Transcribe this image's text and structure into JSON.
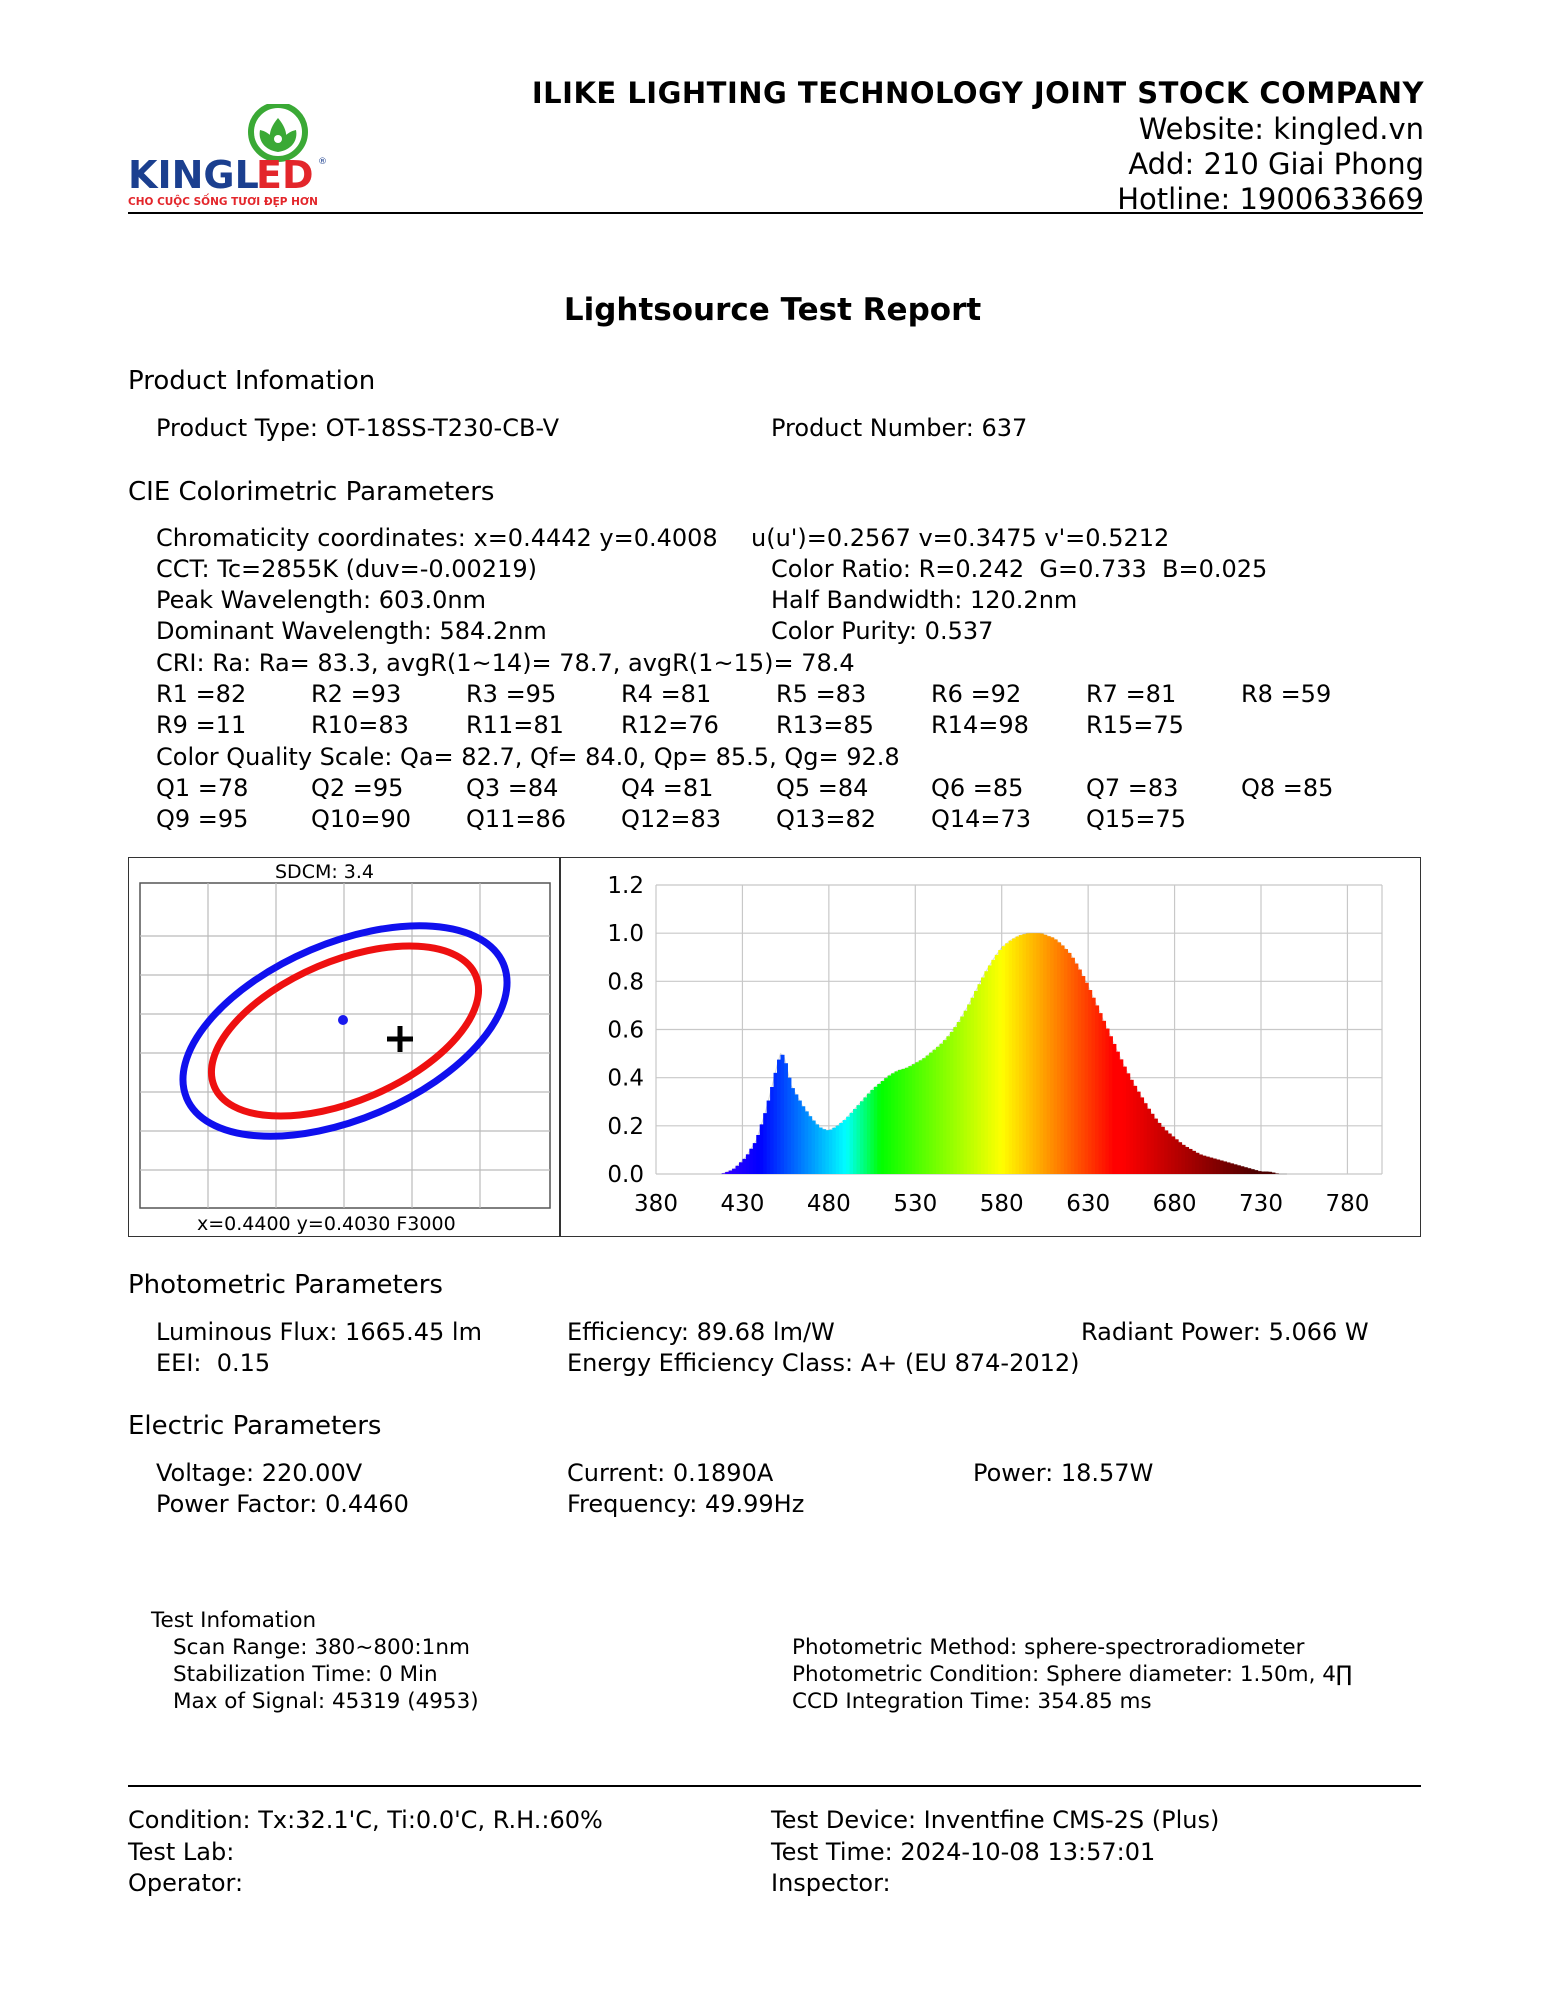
{
  "header": {
    "logo": {
      "brand": "KINGLED",
      "slogan": "CHO CUỘC SỐNG TƯƠI ĐẸP HƠN",
      "colors": {
        "green": "#3aa935",
        "red": "#e3262b",
        "navy": "#1b3f8f"
      }
    },
    "company_name": "ILIKE LIGHTING TECHNOLOGY JOINT STOCK COMPANY",
    "website": "Website: kingled.vn",
    "address": "Add: 210 Giai Phong",
    "hotline": "Hotline: 1900633669"
  },
  "report_title": "Lightsource Test Report",
  "product": {
    "heading": "Product Infomation",
    "type": "Product Type: OT-18SS-T230-CB-V",
    "number": "Product Number: 637"
  },
  "cie": {
    "heading": "CIE Colorimetric Parameters",
    "chromaticity": "Chromaticity coordinates: x=0.4442 y=0.4008",
    "uv": "u(u')=0.2567 v=0.3475 v'=0.5212",
    "cct": "CCT: Tc=2855K (duv=-0.00219)",
    "color_ratio": "Color Ratio: R=0.242  G=0.733  B=0.025",
    "peak": "Peak Wavelength: 603.0nm",
    "half_bandwidth": "Half Bandwidth: 120.2nm",
    "dominant": "Dominant Wavelength: 584.2nm",
    "purity": "Color Purity: 0.537",
    "cri": "CRI: Ra: Ra= 83.3, avgR(1~14)= 78.7, avgR(1~15)= 78.4",
    "r_row1": [
      "R1 =82",
      "R2 =93",
      "R3 =95",
      "R4 =81",
      "R5 =83",
      "R6 =92",
      "R7 =81",
      "R8 =59"
    ],
    "r_row2": [
      "R9 =11",
      "R10=83",
      "R11=81",
      "R12=76",
      "R13=85",
      "R14=98",
      "R15=75"
    ],
    "cqs": "Color Quality Scale: Qa= 82.7, Qf= 84.0, Qp= 85.5, Qg= 92.8",
    "q_row1": [
      "Q1 =78",
      "Q2 =95",
      "Q3 =84",
      "Q4 =81",
      "Q5 =84",
      "Q6 =85",
      "Q7 =83",
      "Q8 =85"
    ],
    "q_row2": [
      "Q9 =95",
      "Q10=90",
      "Q11=86",
      "Q12=83",
      "Q13=82",
      "Q14=73",
      "Q15=75"
    ]
  },
  "sdcm_chart": {
    "label": "SDCM:   3.4",
    "footer": "x=0.4400 y=0.4030 F3000",
    "colors": {
      "outer": "#1010ee",
      "inner": "#ee1010",
      "point": "#1a1aee",
      "cross": "#000000"
    }
  },
  "chart_data": {
    "type": "area",
    "xlabel": "",
    "ylabel": "",
    "xlim": [
      380,
      800
    ],
    "ylim": [
      0,
      1.2
    ],
    "x_ticks": [
      "380",
      "430",
      "480",
      "530",
      "580",
      "630",
      "680",
      "730",
      "780"
    ],
    "y_ticks": [
      "0.0",
      "0.2",
      "0.4",
      "0.6",
      "0.8",
      "1.0",
      "1.2"
    ],
    "grid": true,
    "x": [
      418,
      425,
      432,
      438,
      443,
      447,
      450,
      452,
      454,
      456,
      458,
      461,
      465,
      470,
      475,
      480,
      485,
      490,
      495,
      500,
      505,
      510,
      515,
      520,
      525,
      530,
      535,
      540,
      545,
      550,
      555,
      560,
      565,
      570,
      575,
      580,
      585,
      590,
      595,
      600,
      603,
      606,
      610,
      615,
      620,
      625,
      630,
      635,
      640,
      645,
      650,
      655,
      660,
      665,
      670,
      675,
      680,
      685,
      690,
      695,
      700,
      705,
      710,
      715,
      720,
      725,
      730,
      735,
      740,
      745
    ],
    "y": [
      0.0,
      0.02,
      0.07,
      0.14,
      0.25,
      0.36,
      0.45,
      0.5,
      0.49,
      0.43,
      0.37,
      0.33,
      0.28,
      0.23,
      0.19,
      0.18,
      0.2,
      0.23,
      0.27,
      0.31,
      0.35,
      0.38,
      0.41,
      0.43,
      0.44,
      0.46,
      0.48,
      0.51,
      0.54,
      0.58,
      0.63,
      0.69,
      0.76,
      0.83,
      0.89,
      0.94,
      0.97,
      0.99,
      1.0,
      1.0,
      1.0,
      0.99,
      0.98,
      0.95,
      0.91,
      0.85,
      0.78,
      0.7,
      0.62,
      0.54,
      0.46,
      0.39,
      0.33,
      0.27,
      0.22,
      0.18,
      0.15,
      0.12,
      0.1,
      0.08,
      0.07,
      0.06,
      0.05,
      0.04,
      0.03,
      0.02,
      0.01,
      0.01,
      0.0,
      0.0
    ]
  },
  "photometric": {
    "heading": "Photometric Parameters",
    "flux": "Luminous Flux: 1665.45 lm",
    "efficiency": "Efficiency: 89.68 lm/W",
    "radiant": "Radiant Power: 5.066 W",
    "eei": "EEI:  0.15",
    "energy_class": "Energy Efficiency Class: A+ (EU 874-2012)"
  },
  "electric": {
    "heading": "Electric Parameters",
    "voltage": "Voltage: 220.00V",
    "current": "Current: 0.1890A",
    "power": "Power: 18.57W",
    "pf": "Power Factor: 0.4460",
    "frequency": "Frequency: 49.99Hz"
  },
  "test_info": {
    "heading": "Test Infomation",
    "scan_range": "Scan Range: 380~800:1nm",
    "stabilization": "Stabilization Time: 0 Min",
    "max_signal": "Max of Signal: 45319 (4953)",
    "method": "Photometric Method: sphere-spectroradiometer",
    "condition": "Photometric Condition: Sphere diameter: 1.50m, 4∏",
    "ccd": "CCD Integration Time: 354.85 ms"
  },
  "footer": {
    "condition": "Condition: Tx:32.1'C, Ti:0.0'C, R.H.:60%",
    "device": "Test Device: Inventfine CMS-2S (Plus)",
    "lab": "Test Lab:",
    "time": "Test Time: 2024-10-08 13:57:01",
    "operator": "Operator:",
    "inspector": "Inspector:"
  }
}
